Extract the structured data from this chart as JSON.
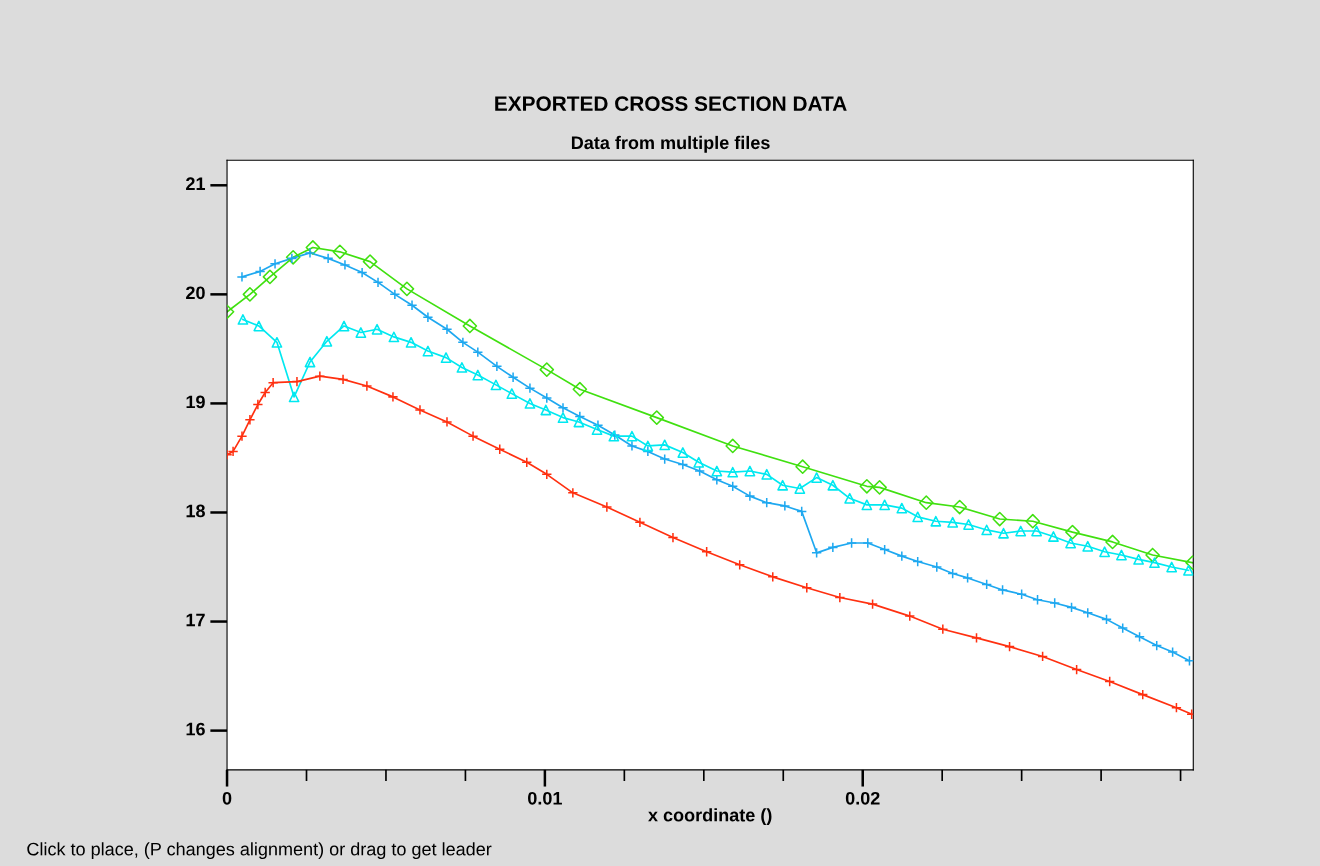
{
  "chart_data": {
    "type": "line",
    "title": "EXPORTED CROSS SECTION DATA",
    "subtitle": "Data from multiple files",
    "xlabel": "x coordinate ()",
    "annotations": [
      "Click to place, (P changes alignment) or drag to get leader"
    ],
    "xlim": [
      0,
      0.0304
    ],
    "ylim": [
      15.64,
      21.23
    ],
    "xticks": [
      0,
      {
        "value": 0.0025,
        "label": null
      },
      {
        "value": 0.005,
        "label": null
      },
      {
        "value": 0.0075,
        "label": null
      },
      0.01,
      {
        "value": 0.0125,
        "label": null
      },
      {
        "value": 0.015,
        "label": null
      },
      {
        "value": 0.0175,
        "label": null
      },
      0.02,
      {
        "value": 0.0225,
        "label": null
      },
      {
        "value": 0.025,
        "label": null
      },
      {
        "value": 0.0275,
        "label": null
      },
      {
        "value": 0.03,
        "label": null
      }
    ],
    "yticks": [
      16,
      17,
      18,
      19,
      20,
      21
    ],
    "grid": false,
    "legend": false,
    "line_style": "solid",
    "series": [
      {
        "color": "#40e010",
        "marker": "diamond",
        "x": [
          0,
          0.00072,
          0.00135,
          0.00208,
          0.0027,
          0.00355,
          0.0045,
          0.00566,
          0.00764,
          0.01006,
          0.0111,
          0.01352,
          0.01591,
          0.01811,
          0.02013,
          0.02053,
          0.022,
          0.02305,
          0.02431,
          0.02535,
          0.0266,
          0.02786,
          0.02912,
          0.03038
        ],
        "values": [
          19.84,
          20.0,
          20.16,
          20.34,
          20.43,
          20.39,
          20.3,
          20.05,
          19.71,
          19.31,
          19.13,
          18.87,
          18.61,
          18.42,
          18.24,
          18.23,
          18.09,
          18.05,
          17.94,
          17.92,
          17.82,
          17.73,
          17.61,
          17.54
        ]
      },
      {
        "color": "#1ea8f0",
        "marker": "cross",
        "x": [
          0.00047,
          0.00104,
          0.00151,
          0.00204,
          0.00261,
          0.00318,
          0.00371,
          0.00425,
          0.00475,
          0.00528,
          0.00582,
          0.00632,
          0.00692,
          0.00742,
          0.00789,
          0.00849,
          0.009,
          0.00953,
          0.01006,
          0.01057,
          0.0111,
          0.01167,
          0.0122,
          0.01274,
          0.01324,
          0.01377,
          0.01434,
          0.01487,
          0.01541,
          0.01591,
          0.01645,
          0.01698,
          0.01755,
          0.01808,
          0.01855,
          0.01906,
          0.01965,
          0.02016,
          0.02069,
          0.02123,
          0.02173,
          0.02233,
          0.02283,
          0.0233,
          0.0239,
          0.0244,
          0.025,
          0.0255,
          0.02604,
          0.02657,
          0.02708,
          0.02767,
          0.02818,
          0.02871,
          0.02925,
          0.02975,
          0.03028
        ],
        "values": [
          20.16,
          20.21,
          20.28,
          20.33,
          20.38,
          20.33,
          20.27,
          20.2,
          20.11,
          20.0,
          19.9,
          19.79,
          19.68,
          19.56,
          19.47,
          19.34,
          19.24,
          19.14,
          19.05,
          18.96,
          18.88,
          18.8,
          18.71,
          18.61,
          18.56,
          18.49,
          18.44,
          18.38,
          18.3,
          18.24,
          18.15,
          18.09,
          18.06,
          18.01,
          17.63,
          17.68,
          17.72,
          17.72,
          17.66,
          17.6,
          17.55,
          17.5,
          17.44,
          17.4,
          17.34,
          17.29,
          17.25,
          17.2,
          17.17,
          17.13,
          17.08,
          17.02,
          16.94,
          16.86,
          16.78,
          16.72,
          16.64
        ]
      },
      {
        "color": "#00e8f0",
        "marker": "triangle",
        "x": [
          0.0005,
          0.001,
          0.00157,
          0.00211,
          0.00261,
          0.00314,
          0.00368,
          0.00421,
          0.00472,
          0.00525,
          0.00579,
          0.00632,
          0.00689,
          0.00739,
          0.00789,
          0.00846,
          0.00896,
          0.00953,
          0.01003,
          0.01057,
          0.01107,
          0.01164,
          0.01217,
          0.01274,
          0.01324,
          0.01377,
          0.01434,
          0.01484,
          0.01541,
          0.01591,
          0.01645,
          0.01698,
          0.01748,
          0.01802,
          0.01855,
          0.01906,
          0.01959,
          0.02013,
          0.02069,
          0.02123,
          0.02173,
          0.0223,
          0.02283,
          0.02333,
          0.0239,
          0.02443,
          0.02497,
          0.02547,
          0.026,
          0.02654,
          0.02708,
          0.02761,
          0.02814,
          0.02868,
          0.02918,
          0.02972,
          0.03025
        ],
        "values": [
          19.77,
          19.71,
          19.56,
          19.06,
          19.38,
          19.57,
          19.71,
          19.65,
          19.68,
          19.61,
          19.56,
          19.48,
          19.42,
          19.33,
          19.26,
          19.17,
          19.09,
          19.0,
          18.94,
          18.87,
          18.83,
          18.76,
          18.7,
          18.7,
          18.61,
          18.62,
          18.55,
          18.46,
          18.38,
          18.37,
          18.38,
          18.35,
          18.25,
          18.22,
          18.32,
          18.25,
          18.13,
          18.07,
          18.07,
          18.04,
          17.96,
          17.92,
          17.91,
          17.89,
          17.84,
          17.81,
          17.83,
          17.83,
          17.78,
          17.72,
          17.69,
          17.64,
          17.61,
          17.57,
          17.54,
          17.5,
          17.47
        ]
      },
      {
        "color": "#ff3010",
        "marker": "cross",
        "x": [
          0,
          0.00019,
          0.00047,
          0.00072,
          0.00097,
          0.0012,
          0.00145,
          0.0022,
          0.00292,
          0.00365,
          0.0044,
          0.00522,
          0.00607,
          0.00692,
          0.00774,
          0.00858,
          0.00943,
          0.01006,
          0.01088,
          0.01195,
          0.01299,
          0.01403,
          0.01509,
          0.01613,
          0.01717,
          0.01824,
          0.01928,
          0.02031,
          0.02148,
          0.02252,
          0.02358,
          0.02462,
          0.02566,
          0.02673,
          0.02777,
          0.02881,
          0.02987,
          0.03035
        ],
        "values": [
          18.53,
          18.56,
          18.7,
          18.85,
          18.99,
          19.1,
          19.19,
          19.2,
          19.25,
          19.22,
          19.16,
          19.06,
          18.94,
          18.83,
          18.7,
          18.58,
          18.46,
          18.35,
          18.18,
          18.05,
          17.91,
          17.77,
          17.64,
          17.52,
          17.41,
          17.31,
          17.22,
          17.16,
          17.05,
          16.93,
          16.85,
          16.77,
          16.68,
          16.56,
          16.45,
          16.33,
          16.21,
          16.15
        ]
      }
    ]
  }
}
